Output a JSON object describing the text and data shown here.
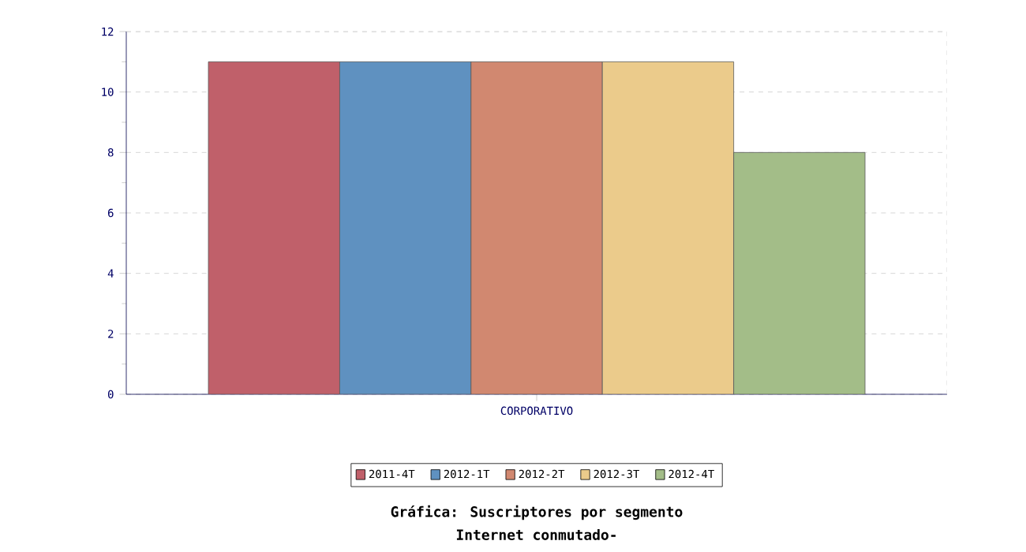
{
  "chart_data": {
    "type": "bar",
    "title": "Gráfica: Suscriptores por segmento",
    "subtitle": "Internet conmutado-",
    "categories": [
      "CORPORATIVO"
    ],
    "series": [
      {
        "name": "2011-4T",
        "color": "#c0606a",
        "values": [
          11
        ]
      },
      {
        "name": "2012-1T",
        "color": "#5f91c0",
        "values": [
          11
        ]
      },
      {
        "name": "2012-2T",
        "color": "#d18870",
        "values": [
          11
        ]
      },
      {
        "name": "2012-3T",
        "color": "#ebcb8b",
        "values": [
          11
        ]
      },
      {
        "name": "2012-4T",
        "color": "#a3bd88",
        "values": [
          8
        ]
      }
    ],
    "ylim": [
      0,
      12
    ],
    "yticks": [
      0,
      2,
      4,
      6,
      8,
      10,
      12
    ],
    "grid": "y",
    "legend": "bottom"
  }
}
